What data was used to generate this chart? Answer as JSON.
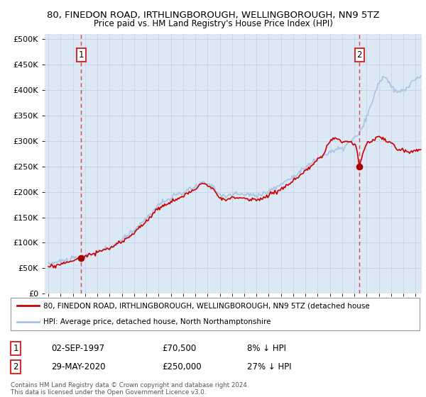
{
  "title_line1": "80, FINEDON ROAD, IRTHLINGBOROUGH, WELLINGBOROUGH, NN9 5TZ",
  "title_line2": "Price paid vs. HM Land Registry's House Price Index (HPI)",
  "legend_line1": "80, FINEDON ROAD, IRTHLINGBOROUGH, WELLINGBOROUGH, NN9 5TZ (detached house",
  "legend_line2": "HPI: Average price, detached house, North Northamptonshire",
  "footer": "Contains HM Land Registry data © Crown copyright and database right 2024.\nThis data is licensed under the Open Government Licence v3.0.",
  "annotation1_date": "02-SEP-1997",
  "annotation1_price": "£70,500",
  "annotation1_hpi": "8% ↓ HPI",
  "annotation2_date": "29-MAY-2020",
  "annotation2_price": "£250,000",
  "annotation2_hpi": "27% ↓ HPI",
  "ylim": [
    0,
    510000
  ],
  "yticks": [
    0,
    50000,
    100000,
    150000,
    200000,
    250000,
    300000,
    350000,
    400000,
    450000,
    500000
  ],
  "ytick_labels": [
    "£0",
    "£50K",
    "£100K",
    "£150K",
    "£200K",
    "£250K",
    "£300K",
    "£350K",
    "£400K",
    "£450K",
    "£500K"
  ],
  "sale1_x": 1997.67,
  "sale1_y": 70500,
  "sale2_x": 2020.41,
  "sale2_y": 250000,
  "hpi_color": "#aac4e4",
  "price_color": "#cc0000",
  "dot_color": "#aa0000",
  "grid_color": "#c8d4e8",
  "bg_color": "#dce8f4",
  "vline_color": "#dd4444",
  "annotation_box_color": "#cc3333",
  "xlim_start": 1994.7,
  "xlim_end": 2025.5,
  "xticks": [
    1995,
    1996,
    1997,
    1998,
    1999,
    2000,
    2001,
    2002,
    2003,
    2004,
    2005,
    2006,
    2007,
    2008,
    2009,
    2010,
    2011,
    2012,
    2013,
    2014,
    2015,
    2016,
    2017,
    2018,
    2019,
    2020,
    2021,
    2022,
    2023,
    2024,
    2025
  ]
}
